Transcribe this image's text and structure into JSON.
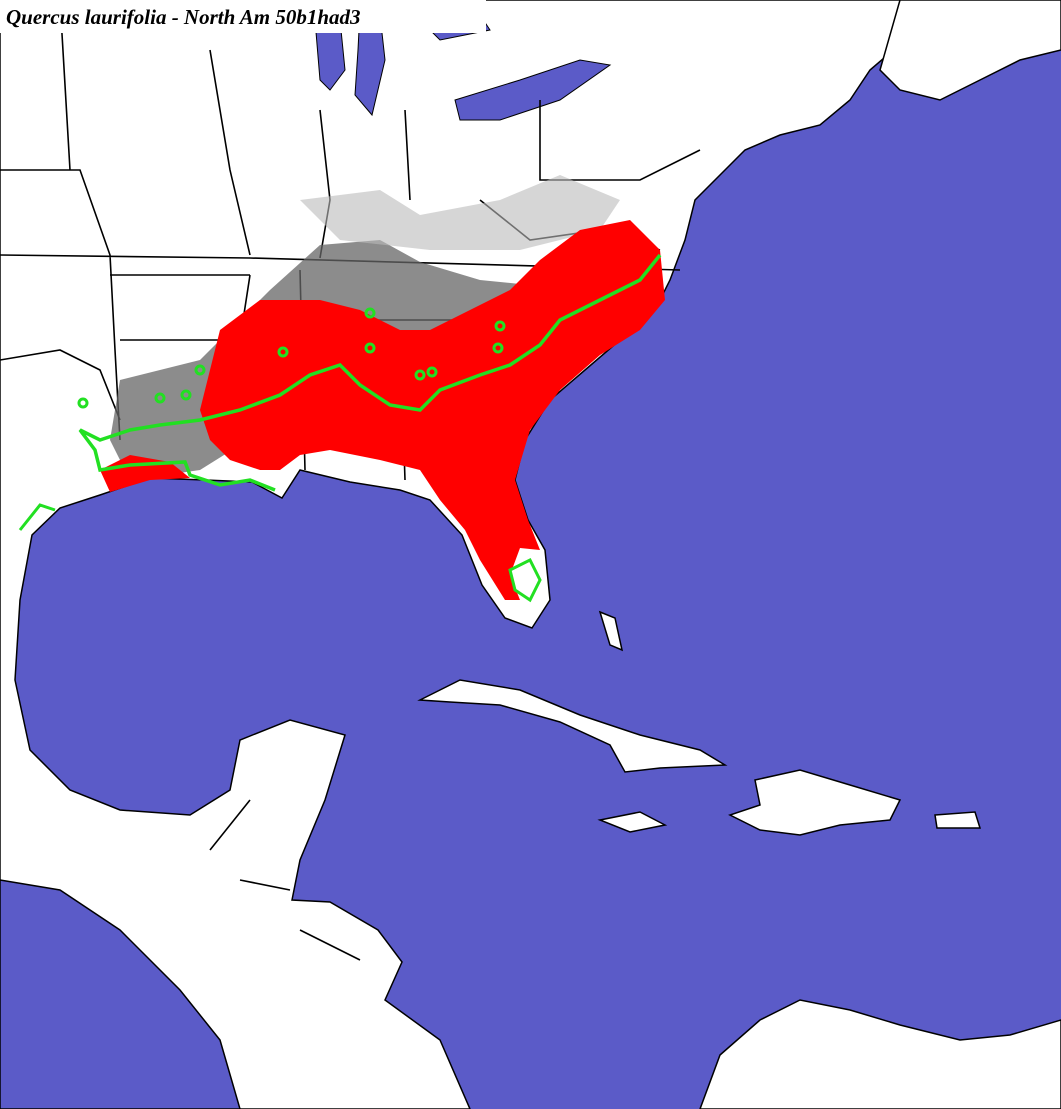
{
  "title": "Quercus laurifolia - North Am 50b1had3"
}
